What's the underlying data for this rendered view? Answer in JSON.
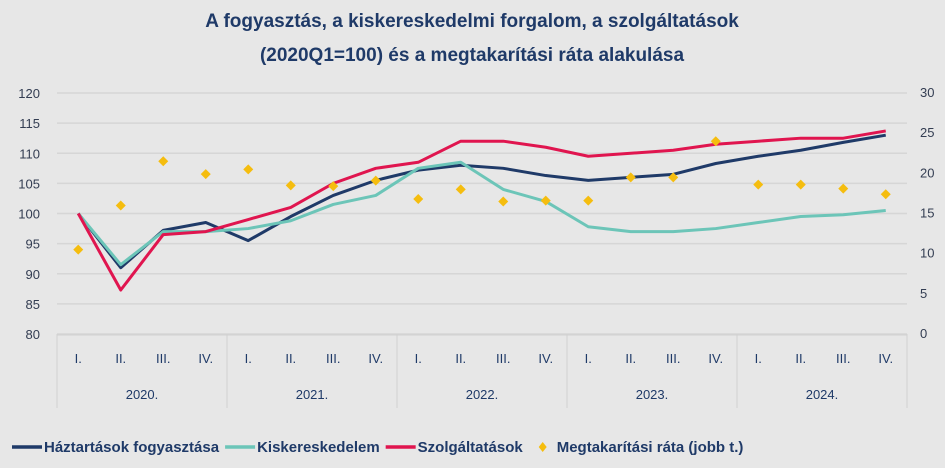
{
  "chart_data": {
    "type": "line",
    "title_lines": [
      "A fogyasztás, a kiskereskedelmi forgalom, a szolgáltatások",
      "(2020Q1=100) és a megtakarítási ráta alakulása"
    ],
    "categories": [
      "I.",
      "II.",
      "III.",
      "IV.",
      "I.",
      "II.",
      "III.",
      "IV.",
      "I.",
      "II.",
      "III.",
      "IV.",
      "I.",
      "II.",
      "III.",
      "IV.",
      "I.",
      "II.",
      "III.",
      "IV."
    ],
    "years": [
      "2020.",
      "2021.",
      "2022.",
      "2023.",
      "2024."
    ],
    "y_left": {
      "min": 80,
      "max": 120,
      "ticks": [
        80,
        85,
        90,
        95,
        100,
        105,
        110,
        115,
        120
      ]
    },
    "y_right": {
      "min": 0,
      "max": 30,
      "ticks": [
        0,
        5,
        10,
        15,
        20,
        25,
        30
      ]
    },
    "grid": true,
    "legend_position": "bottom",
    "series": [
      {
        "name": "Háztartások fogyasztása",
        "type": "line",
        "axis": "left",
        "color": "#1f3a68",
        "values": [
          100,
          91,
          97.2,
          98.5,
          95.5,
          99.5,
          103,
          105.5,
          107.2,
          108,
          107.5,
          106.3,
          105.5,
          106,
          106.5,
          108.3,
          109.5,
          110.5,
          111.8,
          113
        ]
      },
      {
        "name": "Kiskereskedelem",
        "type": "line",
        "axis": "left",
        "color": "#6cc5b8",
        "values": [
          100,
          91.5,
          97,
          97,
          97.5,
          98.8,
          101.5,
          103,
          107.5,
          108.5,
          104,
          102,
          97.8,
          97,
          97,
          97.5,
          98.5,
          99.5,
          99.8,
          100.5
        ]
      },
      {
        "name": "Szolgáltatások",
        "type": "line",
        "axis": "left",
        "color": "#e0154f",
        "values": [
          100,
          87.3,
          96.5,
          97,
          99,
          101,
          105,
          107.5,
          108.5,
          112,
          112,
          111,
          109.5,
          110,
          110.5,
          111.5,
          112,
          112.5,
          112.5,
          113.7
        ]
      },
      {
        "name": "Megtakarítási ráta (jobb t.)",
        "type": "scatter",
        "axis": "right",
        "color": "#f5bd0f",
        "values": [
          10.5,
          16,
          21.5,
          19.9,
          20.5,
          18.5,
          18.4,
          19.1,
          16.8,
          18,
          16.5,
          16.6,
          16.6,
          19.5,
          19.5,
          24,
          18.6,
          18.6,
          18.1,
          17.4
        ]
      }
    ]
  }
}
